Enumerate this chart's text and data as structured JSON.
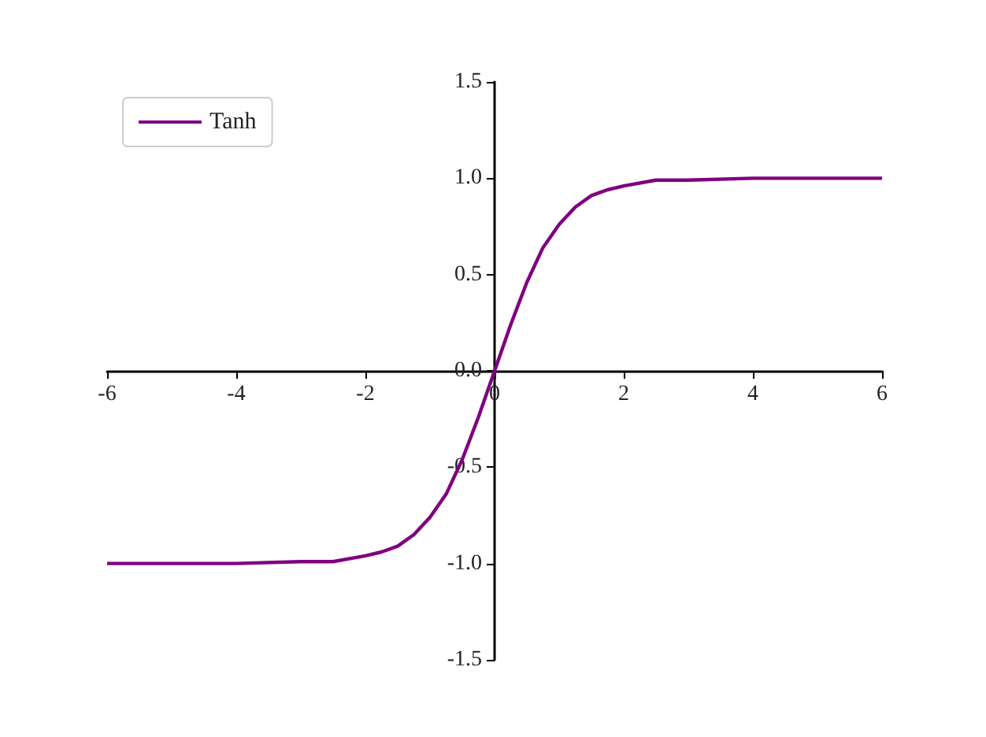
{
  "chart_data": {
    "type": "line",
    "x": [
      -6,
      -5,
      -4,
      -3,
      -2.5,
      -2,
      -1.75,
      -1.5,
      -1.25,
      -1,
      -0.75,
      -0.5,
      -0.25,
      0,
      0.25,
      0.5,
      0.75,
      1,
      1.25,
      1.5,
      1.75,
      2,
      2.5,
      3,
      4,
      5,
      6
    ],
    "series": [
      {
        "name": "Tanh",
        "color": "#800080",
        "values": [
          -1.0,
          -1.0,
          -1.0,
          -0.99,
          -0.99,
          -0.96,
          -0.94,
          -0.91,
          -0.85,
          -0.76,
          -0.64,
          -0.46,
          -0.24,
          0,
          0.24,
          0.46,
          0.64,
          0.76,
          0.85,
          0.91,
          0.94,
          0.96,
          0.99,
          0.99,
          1.0,
          1.0,
          1.0
        ]
      }
    ],
    "xlim": [
      -6,
      6
    ],
    "xticks": [
      -6,
      -4,
      -2,
      0,
      2,
      4,
      6
    ],
    "ylim": [
      -1.5,
      1.5
    ],
    "yticks": [
      -1.5,
      {
        "value": -1,
        "label": "-1.0"
      },
      -0.5,
      {
        "value": 0,
        "label": "0.0"
      },
      0.5,
      {
        "value": 1,
        "label": "1.0"
      },
      1.5
    ],
    "legend": "top left",
    "grid": false,
    "marker": "none",
    "line_style": "solid"
  }
}
